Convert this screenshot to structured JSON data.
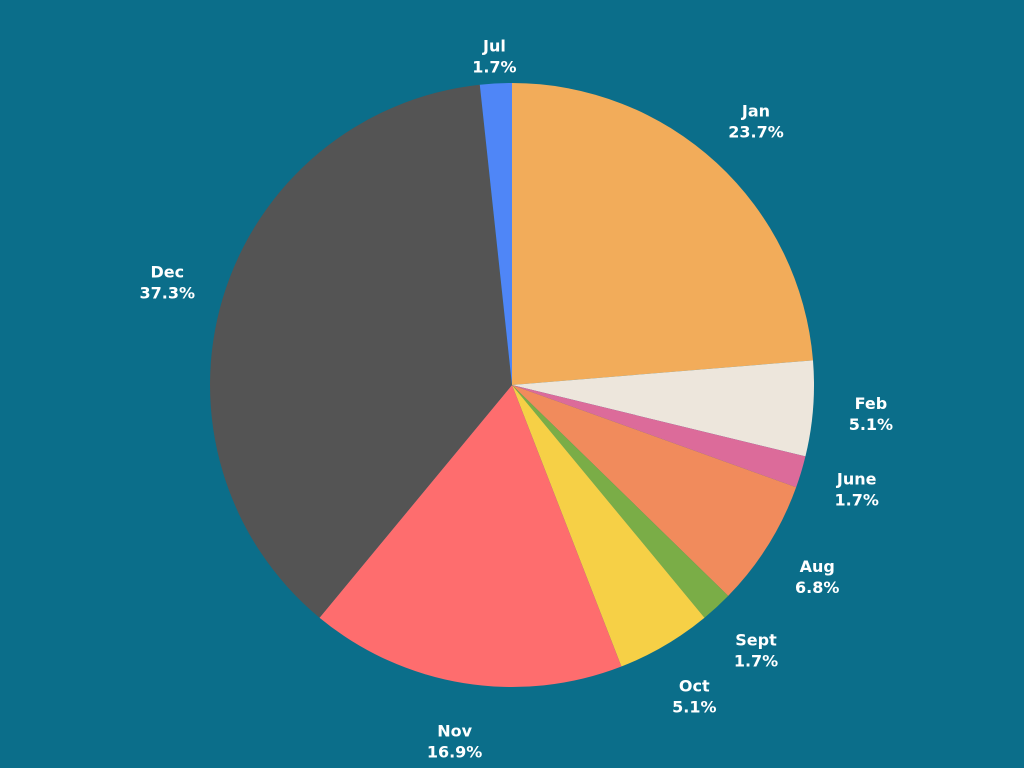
{
  "background_color": "#0b6e8a",
  "chart_data": {
    "type": "pie",
    "start_angle_deg": 0,
    "direction": "clockwise",
    "slices": [
      {
        "label": "Jan",
        "value": 23.7,
        "display": "23.7%",
        "color": "#f2ac5a"
      },
      {
        "label": "Feb",
        "value": 5.1,
        "display": "5.1%",
        "color": "#ede6dc"
      },
      {
        "label": "June",
        "value": 1.7,
        "display": "1.7%",
        "color": "#dc6b9a"
      },
      {
        "label": "Aug",
        "value": 6.8,
        "display": "6.8%",
        "color": "#f18b5c"
      },
      {
        "label": "Sept",
        "value": 1.7,
        "display": "1.7%",
        "color": "#7aad47"
      },
      {
        "label": "Oct",
        "value": 5.1,
        "display": "5.1%",
        "color": "#f6d046"
      },
      {
        "label": "Nov",
        "value": 16.9,
        "display": "16.9%",
        "color": "#fe6d6e"
      },
      {
        "label": "Dec",
        "value": 37.3,
        "display": "37.3%",
        "color": "#545454"
      },
      {
        "label": "Jul",
        "value": 1.7,
        "display": "1.7%",
        "color": "#4f86f7"
      }
    ]
  }
}
